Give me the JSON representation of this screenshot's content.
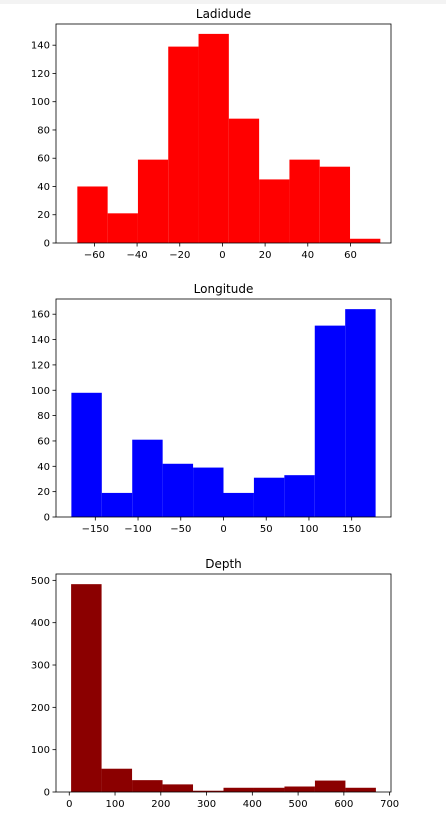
{
  "chart_data": [
    {
      "type": "bar",
      "title": "Ladidude",
      "color": "#ff0000",
      "bin_edges": [
        -68.0,
        -53.8,
        -39.6,
        -25.4,
        -11.2,
        3.0,
        17.2,
        31.4,
        45.6,
        59.8,
        74.0
      ],
      "values": [
        40,
        21,
        59,
        139,
        148,
        88,
        45,
        59,
        54,
        3
      ],
      "xlim": [
        -78,
        79
      ],
      "ylim": [
        0,
        155
      ],
      "xticks": [
        -60,
        -40,
        -20,
        0,
        20,
        40,
        60
      ],
      "xtick_labels": [
        "−60",
        "−40",
        "−20",
        "0",
        "20",
        "40",
        "60"
      ],
      "yticks": [
        0,
        20,
        40,
        60,
        80,
        100,
        120,
        140
      ],
      "ytick_labels": [
        "0",
        "20",
        "40",
        "60",
        "80",
        "100",
        "120",
        "140"
      ]
    },
    {
      "type": "bar",
      "title": "Longitude",
      "color": "#0000ff",
      "bin_edges": [
        -178.0,
        -142.4,
        -106.8,
        -71.2,
        -35.6,
        0.0,
        35.6,
        71.2,
        106.8,
        142.4,
        178.0
      ],
      "values": [
        98,
        19,
        61,
        42,
        39,
        19,
        31,
        33,
        151,
        164
      ],
      "xlim": [
        -196,
        196
      ],
      "ylim": [
        0,
        172
      ],
      "xticks": [
        -150,
        -100,
        -50,
        0,
        50,
        100,
        150
      ],
      "xtick_labels": [
        "−150",
        "−100",
        "−50",
        "0",
        "50",
        "100",
        "150"
      ],
      "yticks": [
        0,
        20,
        40,
        60,
        80,
        100,
        120,
        140,
        160
      ],
      "ytick_labels": [
        "0",
        "20",
        "40",
        "60",
        "80",
        "100",
        "120",
        "140",
        "160"
      ]
    },
    {
      "type": "bar",
      "title": "Depth",
      "color": "#8b0000",
      "bin_edges": [
        4.0,
        70.6,
        137.2,
        203.8,
        270.4,
        337.0,
        403.6,
        470.2,
        536.8,
        603.4,
        670.0
      ],
      "values": [
        491,
        55,
        28,
        18,
        3,
        10,
        10,
        13,
        27,
        10
      ],
      "xlim": [
        -29,
        703
      ],
      "ylim": [
        0,
        515
      ],
      "xticks": [
        0,
        100,
        200,
        300,
        400,
        500,
        600,
        700
      ],
      "xtick_labels": [
        "0",
        "100",
        "200",
        "300",
        "400",
        "500",
        "600",
        "700"
      ],
      "yticks": [
        0,
        100,
        200,
        300,
        400,
        500
      ],
      "ytick_labels": [
        "0",
        "100",
        "200",
        "300",
        "400",
        "500"
      ]
    }
  ]
}
